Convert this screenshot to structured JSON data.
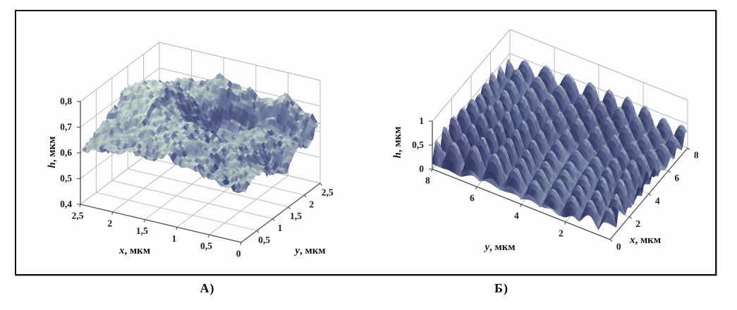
{
  "figure": {
    "caption_a": "А)",
    "caption_b": "Б)",
    "background": "#ffffff",
    "frame_color": "#151515"
  },
  "chart_data": [
    {
      "id": "A",
      "type": "surface",
      "title": "",
      "xlabel": {
        "var": "x",
        "unit": ", мкм"
      },
      "ylabel": {
        "var": "y",
        "unit": ", мкм"
      },
      "zlabel": {
        "var": "h",
        "unit": ", мкм"
      },
      "xlim": [
        0,
        2.5
      ],
      "ylim": [
        0,
        2.5
      ],
      "zlim": [
        0.4,
        0.8
      ],
      "x_ticks": {
        "values": [
          0,
          0.5,
          1,
          1.5,
          2,
          2.5
        ],
        "labels": [
          "0",
          "0,5",
          "1",
          "1,5",
          "2",
          "2,5"
        ]
      },
      "y_ticks": {
        "values": [
          0.5,
          1,
          1.5,
          2,
          2.5
        ],
        "labels": [
          "0,5",
          "1",
          "1,5",
          "2",
          "2,5"
        ]
      },
      "z_ticks": {
        "values": [
          0.4,
          0.5,
          0.6,
          0.7,
          0.8
        ],
        "labels": [
          "0,4",
          "0,5",
          "0,6",
          "0,7",
          "0,8"
        ]
      },
      "grid": true,
      "legend": "none",
      "view": "x axis runs toward lower-left, y axis toward lower-right, z vertical",
      "description": "Rough irregular AFM-like relief, heights ~0.45-0.78 мкм: pale high plateau at back-left, dark central depression (crater), jagged dark foreground, smooth pale shelf and spiky ridge on the right edge",
      "surface_height_range_um": [
        0.45,
        0.78
      ],
      "colormap": [
        "#262b4e",
        "#3d4370",
        "#5d6690",
        "#8691ac",
        "#a9babb",
        "#cfe0d7",
        "#edf5f1"
      ]
    },
    {
      "id": "B",
      "type": "surface",
      "title": "",
      "xlabel": {
        "var": "x",
        "unit": ", мкм"
      },
      "ylabel": {
        "var": "y",
        "unit": ", мкм"
      },
      "zlabel": {
        "var": "h",
        "unit": ", мкм"
      },
      "xlim": [
        0,
        8
      ],
      "ylim": [
        0,
        8
      ],
      "zlim": [
        0,
        1
      ],
      "x_ticks": {
        "values": [
          0,
          2,
          4,
          6,
          8
        ],
        "labels": [
          "0",
          "2",
          "4",
          "6",
          "8"
        ]
      },
      "y_ticks": {
        "values": [
          2,
          4,
          6,
          8
        ],
        "labels": [
          "2",
          "4",
          "6",
          "8"
        ]
      },
      "z_ticks": {
        "values": [
          0,
          0.5,
          1
        ],
        "labels": [
          "0",
          "0,5",
          "1"
        ]
      },
      "grid": true,
      "legend": "none",
      "view": "y axis runs toward lower-left, x axis toward lower-right (steep), z vertical",
      "description": "Dense quasi-periodic array of rounded bumps (~9 per axis), heights ~0.1-0.9 мкм, pale bump tops with dark slate valleys",
      "surface_height_range_um": [
        0.05,
        0.95
      ],
      "colormap": [
        "#262b4e",
        "#3d4370",
        "#5d6690",
        "#8691ac",
        "#a9babb",
        "#cfe0d7",
        "#edf5f1"
      ]
    }
  ]
}
